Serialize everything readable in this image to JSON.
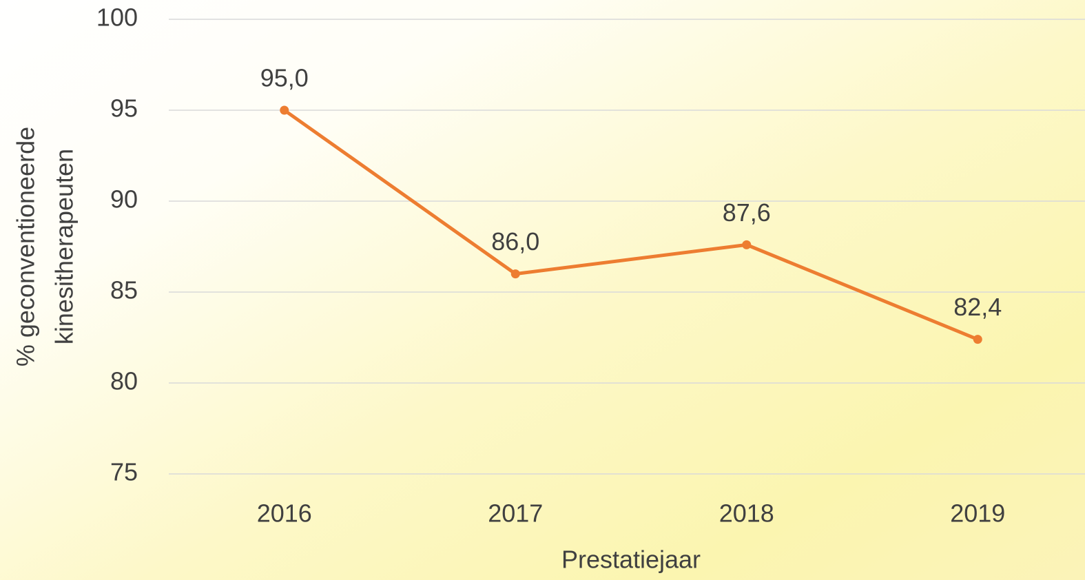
{
  "chart_data": {
    "type": "line",
    "xlabel": "Prestatiejaar",
    "ylabel": [
      "% geconventioneerde",
      "kinesitherapeuten"
    ],
    "categories": [
      "2016",
      "2017",
      "2018",
      "2019"
    ],
    "series": [
      {
        "name": null,
        "color": "#ed7d31",
        "values": [
          95.0,
          86.0,
          87.6,
          82.4
        ],
        "value_labels": [
          "95,0",
          "86,0",
          "87,6",
          "82,4"
        ]
      }
    ],
    "ylim": [
      75,
      100
    ],
    "yticks": [
      75,
      80,
      85,
      90,
      95,
      100
    ],
    "grid": true
  }
}
